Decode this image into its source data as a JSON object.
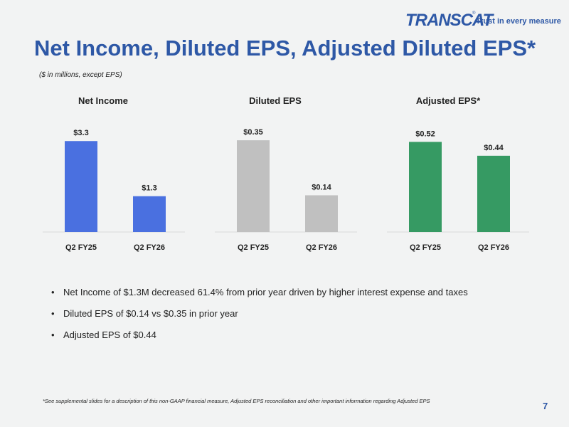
{
  "logo": {
    "wordmark": "TRANSCAT",
    "registered": "®",
    "tagline": "Trust in every measure"
  },
  "title": "Net Income, Diluted EPS, Adjusted Diluted EPS*",
  "subtitle": "($ in millions, except EPS)",
  "colors": {
    "net_income": "#4a70e0",
    "diluted_eps": "#c0c0c0",
    "adjusted_eps": "#369a63",
    "brand": "#2e58a6"
  },
  "chart_data": [
    {
      "type": "bar",
      "title": "Net Income",
      "categories": [
        "Q2 FY25",
        "Q2 FY26"
      ],
      "values": [
        3.3,
        1.3
      ],
      "labels": [
        "$3.3",
        "$1.3"
      ],
      "ylim": [
        0,
        3.9
      ],
      "xlabel": "",
      "ylabel": "",
      "grid": false
    },
    {
      "type": "bar",
      "title": "Diluted EPS",
      "categories": [
        "Q2 FY25",
        "Q2 FY26"
      ],
      "values": [
        0.35,
        0.14
      ],
      "labels": [
        "$0.35",
        "$0.14"
      ],
      "ylim": [
        0,
        0.41
      ],
      "xlabel": "",
      "ylabel": "",
      "grid": false
    },
    {
      "type": "bar",
      "title": "Adjusted EPS*",
      "categories": [
        "Q2 FY25",
        "Q2 FY26"
      ],
      "values": [
        0.52,
        0.44
      ],
      "labels": [
        "$0.52",
        "$0.44"
      ],
      "ylim": [
        0,
        0.62
      ],
      "xlabel": "",
      "ylabel": "",
      "grid": false
    }
  ],
  "bullets": [
    "Net Income of $1.3M decreased 61.4% from prior year driven by higher interest expense and taxes",
    "Diluted EPS of $0.14 vs $0.35 in prior year",
    "Adjusted EPS of $0.44"
  ],
  "bullet_char": "•",
  "footnote": "*See supplemental slides for a description of this non-GAAP financial measure, Adjusted EPS reconciliation and other important information regarding Adjusted EPS",
  "page_number": "7"
}
